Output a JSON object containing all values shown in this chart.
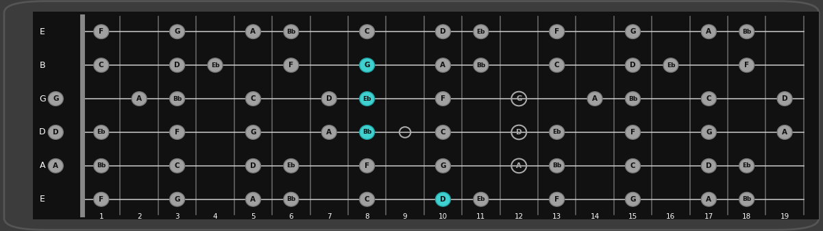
{
  "bg_color": "#3c3c3c",
  "fretboard_color": "#111111",
  "string_color": "#cccccc",
  "fret_color": "#666666",
  "nut_color": "#888888",
  "note_gray": "#a0a0a0",
  "note_cyan": "#40d0d0",
  "note_text": "#111111",
  "label_color": "#ffffff",
  "string_labels": [
    "E",
    "B",
    "G",
    "D",
    "A",
    "E"
  ],
  "num_frets": 19,
  "notes": [
    {
      "string": 0,
      "fret": 1,
      "label": "F",
      "hi": false
    },
    {
      "string": 0,
      "fret": 3,
      "label": "G",
      "hi": false
    },
    {
      "string": 0,
      "fret": 5,
      "label": "A",
      "hi": false
    },
    {
      "string": 0,
      "fret": 6,
      "label": "Bb",
      "hi": false
    },
    {
      "string": 0,
      "fret": 8,
      "label": "C",
      "hi": false
    },
    {
      "string": 0,
      "fret": 10,
      "label": "D",
      "hi": false
    },
    {
      "string": 0,
      "fret": 11,
      "label": "Eb",
      "hi": false
    },
    {
      "string": 0,
      "fret": 13,
      "label": "F",
      "hi": false
    },
    {
      "string": 0,
      "fret": 15,
      "label": "G",
      "hi": false
    },
    {
      "string": 0,
      "fret": 17,
      "label": "A",
      "hi": false
    },
    {
      "string": 0,
      "fret": 18,
      "label": "Bb",
      "hi": false
    },
    {
      "string": 1,
      "fret": 1,
      "label": "C",
      "hi": false
    },
    {
      "string": 1,
      "fret": 3,
      "label": "D",
      "hi": false
    },
    {
      "string": 1,
      "fret": 4,
      "label": "Eb",
      "hi": false
    },
    {
      "string": 1,
      "fret": 6,
      "label": "F",
      "hi": false
    },
    {
      "string": 1,
      "fret": 8,
      "label": "G",
      "hi": true
    },
    {
      "string": 1,
      "fret": 10,
      "label": "A",
      "hi": false
    },
    {
      "string": 1,
      "fret": 11,
      "label": "Bb",
      "hi": false
    },
    {
      "string": 1,
      "fret": 13,
      "label": "C",
      "hi": false
    },
    {
      "string": 1,
      "fret": 15,
      "label": "D",
      "hi": false
    },
    {
      "string": 1,
      "fret": 16,
      "label": "Eb",
      "hi": false
    },
    {
      "string": 1,
      "fret": 18,
      "label": "F",
      "hi": false
    },
    {
      "string": 2,
      "fret": 0,
      "label": "G",
      "hi": false
    },
    {
      "string": 2,
      "fret": 2,
      "label": "A",
      "hi": false
    },
    {
      "string": 2,
      "fret": 3,
      "label": "Bb",
      "hi": false
    },
    {
      "string": 2,
      "fret": 5,
      "label": "C",
      "hi": false
    },
    {
      "string": 2,
      "fret": 7,
      "label": "D",
      "hi": false
    },
    {
      "string": 2,
      "fret": 8,
      "label": "Eb",
      "hi": true
    },
    {
      "string": 2,
      "fret": 10,
      "label": "F",
      "hi": false
    },
    {
      "string": 2,
      "fret": 12,
      "label": "G",
      "hi": false,
      "hollow": true
    },
    {
      "string": 2,
      "fret": 14,
      "label": "A",
      "hi": false
    },
    {
      "string": 2,
      "fret": 15,
      "label": "Bb",
      "hi": false
    },
    {
      "string": 2,
      "fret": 17,
      "label": "C",
      "hi": false
    },
    {
      "string": 2,
      "fret": 19,
      "label": "D",
      "hi": false
    },
    {
      "string": 3,
      "fret": 0,
      "label": "D",
      "hi": false
    },
    {
      "string": 3,
      "fret": 1,
      "label": "Eb",
      "hi": false
    },
    {
      "string": 3,
      "fret": 3,
      "label": "F",
      "hi": false
    },
    {
      "string": 3,
      "fret": 5,
      "label": "G",
      "hi": false
    },
    {
      "string": 3,
      "fret": 7,
      "label": "A",
      "hi": false
    },
    {
      "string": 3,
      "fret": 8,
      "label": "Bb",
      "hi": true
    },
    {
      "string": 3,
      "fret": 9,
      "label": "",
      "hi": false,
      "open_dot": true
    },
    {
      "string": 3,
      "fret": 10,
      "label": "C",
      "hi": false
    },
    {
      "string": 3,
      "fret": 12,
      "label": "D",
      "hi": false,
      "hollow": true
    },
    {
      "string": 3,
      "fret": 13,
      "label": "Eb",
      "hi": false
    },
    {
      "string": 3,
      "fret": 15,
      "label": "F",
      "hi": false
    },
    {
      "string": 3,
      "fret": 17,
      "label": "G",
      "hi": false
    },
    {
      "string": 3,
      "fret": 19,
      "label": "A",
      "hi": false
    },
    {
      "string": 4,
      "fret": 0,
      "label": "A",
      "hi": false
    },
    {
      "string": 4,
      "fret": 1,
      "label": "Bb",
      "hi": false
    },
    {
      "string": 4,
      "fret": 3,
      "label": "C",
      "hi": false
    },
    {
      "string": 4,
      "fret": 5,
      "label": "D",
      "hi": false
    },
    {
      "string": 4,
      "fret": 6,
      "label": "Eb",
      "hi": false
    },
    {
      "string": 4,
      "fret": 8,
      "label": "F",
      "hi": false
    },
    {
      "string": 4,
      "fret": 10,
      "label": "G",
      "hi": false
    },
    {
      "string": 4,
      "fret": 12,
      "label": "A",
      "hi": false,
      "hollow": true
    },
    {
      "string": 4,
      "fret": 13,
      "label": "Bb",
      "hi": false
    },
    {
      "string": 4,
      "fret": 15,
      "label": "C",
      "hi": false
    },
    {
      "string": 4,
      "fret": 17,
      "label": "D",
      "hi": false
    },
    {
      "string": 4,
      "fret": 18,
      "label": "Eb",
      "hi": false
    },
    {
      "string": 5,
      "fret": 1,
      "label": "F",
      "hi": false
    },
    {
      "string": 5,
      "fret": 3,
      "label": "G",
      "hi": false
    },
    {
      "string": 5,
      "fret": 5,
      "label": "A",
      "hi": false
    },
    {
      "string": 5,
      "fret": 6,
      "label": "Bb",
      "hi": false
    },
    {
      "string": 5,
      "fret": 8,
      "label": "C",
      "hi": false
    },
    {
      "string": 5,
      "fret": 10,
      "label": "D",
      "hi": true
    },
    {
      "string": 5,
      "fret": 11,
      "label": "Eb",
      "hi": false
    },
    {
      "string": 5,
      "fret": 13,
      "label": "F",
      "hi": false
    },
    {
      "string": 5,
      "fret": 15,
      "label": "G",
      "hi": false
    },
    {
      "string": 5,
      "fret": 17,
      "label": "A",
      "hi": false
    },
    {
      "string": 5,
      "fret": 18,
      "label": "Bb",
      "hi": false
    }
  ]
}
